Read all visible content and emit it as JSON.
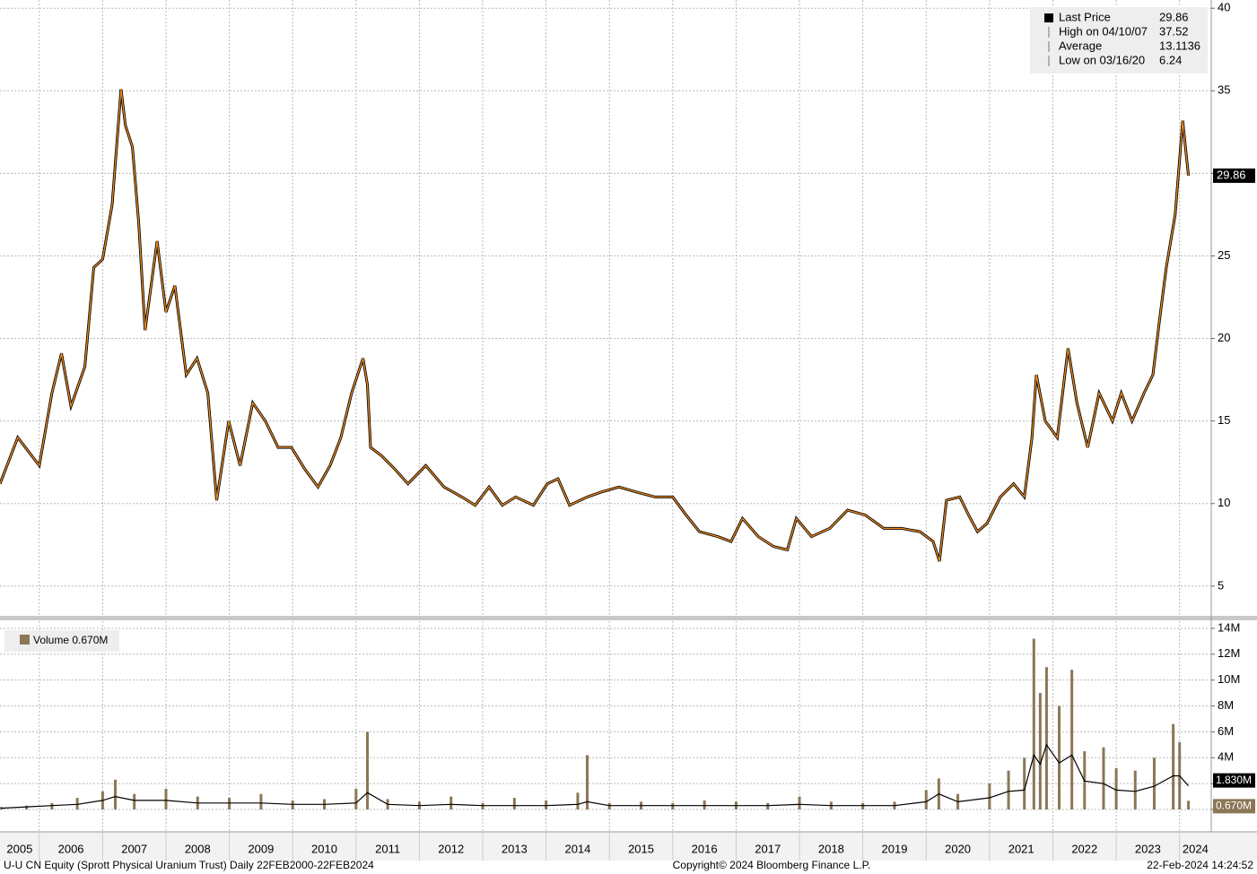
{
  "chart_data": [
    {
      "type": "line",
      "legend": [
        {
          "label": "Last Price",
          "value": 29.86
        },
        {
          "label": "High on 04/10/07",
          "value": 37.52
        },
        {
          "label": "Average",
          "value": 13.1136
        },
        {
          "label": "Low on 03/16/20",
          "value": 6.24
        }
      ],
      "x": [
        2005.38,
        2005.66,
        2006.0,
        2006.2,
        2006.35,
        2006.5,
        2006.72,
        2006.86,
        2007.0,
        2007.15,
        2007.29,
        2007.36,
        2007.47,
        2007.57,
        2007.67,
        2007.86,
        2008.0,
        2008.14,
        2008.32,
        2008.49,
        2008.66,
        2008.8,
        2008.99,
        2009.17,
        2009.37,
        2009.57,
        2009.77,
        2009.98,
        2010.19,
        2010.4,
        2010.59,
        2010.76,
        2010.93,
        2011.11,
        2011.18,
        2011.23,
        2011.4,
        2011.61,
        2011.82,
        2012.1,
        2012.39,
        2012.67,
        2012.88,
        2013.1,
        2013.31,
        2013.52,
        2013.8,
        2014.02,
        2014.19,
        2014.37,
        2014.65,
        2014.87,
        2015.15,
        2015.43,
        2015.72,
        2016.0,
        2016.21,
        2016.42,
        2016.71,
        2016.92,
        2017.1,
        2017.35,
        2017.59,
        2017.81,
        2017.95,
        2018.19,
        2018.48,
        2018.76,
        2019.04,
        2019.33,
        2019.61,
        2019.9,
        2020.11,
        2020.21,
        2020.32,
        2020.53,
        2020.67,
        2020.81,
        2020.96,
        2021.17,
        2021.38,
        2021.55,
        2021.67,
        2021.74,
        2021.88,
        2022.07,
        2022.24,
        2022.38,
        2022.55,
        2022.73,
        2022.94,
        2023.08,
        2023.25,
        2023.44,
        2023.58,
        2023.68,
        2023.79,
        2023.93,
        2024.05,
        2024.1,
        2024.14
      ],
      "series": [
        {
          "name": "Last Price",
          "color": "#f28c1e",
          "outline_color": "#000000",
          "values": [
            11.2,
            14,
            12.3,
            16.7,
            19.1,
            15.9,
            18.3,
            24.3,
            24.8,
            28.1,
            35.1,
            32.9,
            31.6,
            27,
            20.5,
            25.9,
            21.6,
            23.2,
            17.8,
            18.8,
            16.7,
            10.2,
            15,
            12.3,
            16.1,
            15,
            13.4,
            13.4,
            12.1,
            11,
            12.3,
            14,
            16.7,
            18.8,
            17.2,
            13.4,
            12.9,
            12.1,
            11.2,
            12.3,
            11,
            10.4,
            9.9,
            11,
            9.9,
            10.4,
            9.9,
            11.2,
            11.5,
            9.9,
            10.4,
            10.7,
            11,
            10.7,
            10.4,
            10.4,
            9.3,
            8.3,
            8,
            7.7,
            9.1,
            8,
            7.4,
            7.2,
            9.1,
            8,
            8.5,
            9.6,
            9.3,
            8.5,
            8.5,
            8.3,
            7.7,
            6.5,
            10.2,
            10.4,
            9.3,
            8.3,
            8.8,
            10.4,
            11.2,
            10.4,
            14,
            17.8,
            15,
            14,
            19.4,
            16.1,
            13.4,
            16.7,
            15,
            16.7,
            15,
            16.7,
            17.8,
            21,
            24.3,
            27.5,
            33.2,
            31.3,
            29.86
          ]
        }
      ],
      "xlim": [
        2005.38,
        2024.5
      ],
      "xticks": [
        2005,
        2006,
        2007,
        2008,
        2009,
        2010,
        2011,
        2012,
        2013,
        2014,
        2015,
        2016,
        2017,
        2018,
        2019,
        2020,
        2021,
        2022,
        2023,
        2024
      ],
      "ylim": [
        3.2,
        40.5
      ],
      "yticks": [
        5,
        10,
        15,
        20,
        25,
        30,
        35,
        40
      ],
      "grid": true
    },
    {
      "type": "bar",
      "x": [
        2005.4,
        2005.8,
        2006.2,
        2006.6,
        2007.0,
        2007.2,
        2007.5,
        2008.0,
        2008.5,
        2009.0,
        2009.5,
        2010.0,
        2010.5,
        2011.0,
        2011.18,
        2011.5,
        2012.0,
        2012.5,
        2013.0,
        2013.5,
        2014.0,
        2014.5,
        2014.65,
        2015.0,
        2015.5,
        2016.0,
        2016.5,
        2017.0,
        2017.5,
        2018.0,
        2018.5,
        2019.0,
        2019.5,
        2020.0,
        2020.2,
        2020.5,
        2021.0,
        2021.3,
        2021.55,
        2021.7,
        2021.8,
        2021.9,
        2022.1,
        2022.3,
        2022.5,
        2022.8,
        2023.0,
        2023.3,
        2023.6,
        2023.9,
        2024.0,
        2024.14
      ],
      "series": [
        {
          "name": "Volume 0.670M",
          "color": "#8b7756",
          "last_label": {
            "value": 0.67,
            "label": "0.670M"
          },
          "values": [
            0.2,
            0.3,
            0.5,
            0.9,
            1.4,
            2.3,
            1.2,
            1.6,
            1.0,
            0.9,
            1.2,
            0.7,
            0.8,
            1.6,
            6.0,
            0.8,
            0.6,
            1.0,
            0.5,
            0.9,
            0.7,
            1.3,
            4.2,
            0.5,
            0.6,
            0.5,
            0.7,
            0.6,
            0.5,
            1.0,
            0.6,
            0.5,
            0.6,
            1.5,
            2.4,
            1.2,
            2.0,
            3.0,
            4.0,
            13.2,
            9.0,
            11.0,
            8.0,
            10.8,
            4.5,
            4.8,
            3.2,
            3.0,
            4.0,
            6.6,
            5.2,
            0.67
          ]
        },
        {
          "type": "line",
          "color": "#000000",
          "last_label": {
            "value": 1.83,
            "label": "1.830M"
          },
          "values": [
            0.1,
            0.2,
            0.3,
            0.4,
            0.7,
            1.0,
            0.7,
            0.7,
            0.5,
            0.5,
            0.5,
            0.4,
            0.4,
            0.5,
            1.3,
            0.4,
            0.3,
            0.4,
            0.3,
            0.3,
            0.3,
            0.4,
            0.6,
            0.3,
            0.3,
            0.3,
            0.3,
            0.3,
            0.3,
            0.4,
            0.3,
            0.3,
            0.3,
            0.6,
            1.2,
            0.6,
            0.9,
            1.4,
            1.5,
            4.2,
            3.5,
            5.0,
            3.6,
            4.2,
            2.2,
            2.0,
            1.5,
            1.4,
            1.8,
            2.6,
            2.6,
            1.83
          ]
        }
      ],
      "xlim": [
        2005.38,
        2024.5
      ],
      "xticks": [
        {
          "value": 2005,
          "label": "2005"
        },
        {
          "value": 2006,
          "label": "2006"
        },
        {
          "value": 2007,
          "label": "2007"
        },
        {
          "value": 2008,
          "label": "2008"
        },
        {
          "value": 2009,
          "label": "2009"
        },
        {
          "value": 2010,
          "label": "2010"
        },
        {
          "value": 2011,
          "label": "2011"
        },
        {
          "value": 2012,
          "label": "2012"
        },
        {
          "value": 2013,
          "label": "2013"
        },
        {
          "value": 2014,
          "label": "2014"
        },
        {
          "value": 2015,
          "label": "2015"
        },
        {
          "value": 2016,
          "label": "2016"
        },
        {
          "value": 2017,
          "label": "2017"
        },
        {
          "value": 2018,
          "label": "2018"
        },
        {
          "value": 2019,
          "label": "2019"
        },
        {
          "value": 2020,
          "label": "2020"
        },
        {
          "value": 2021,
          "label": "2021"
        },
        {
          "value": 2022,
          "label": "2022"
        },
        {
          "value": 2023,
          "label": "2023"
        },
        {
          "value": 2024,
          "label": "2024"
        }
      ],
      "ylim": [
        -1.66,
        14.55
      ],
      "yticks": [
        0,
        {
          "value": 2,
          "label": "2M"
        },
        {
          "value": 4,
          "label": "4M"
        },
        {
          "value": 6,
          "label": "6M"
        },
        {
          "value": 8,
          "label": "8M"
        },
        {
          "value": 10,
          "label": "10M"
        },
        {
          "value": 12,
          "label": "12M"
        },
        {
          "value": 14,
          "label": "14M"
        }
      ],
      "grid": true
    }
  ],
  "footer": {
    "left": "U-U CN Equity (Sprott Physical Uranium Trust)  Daily 22FEB2000-22FEB2024",
    "center": "Copyright© 2024 Bloomberg Finance L.P.",
    "right": "22-Feb-2024 14:24:52"
  }
}
